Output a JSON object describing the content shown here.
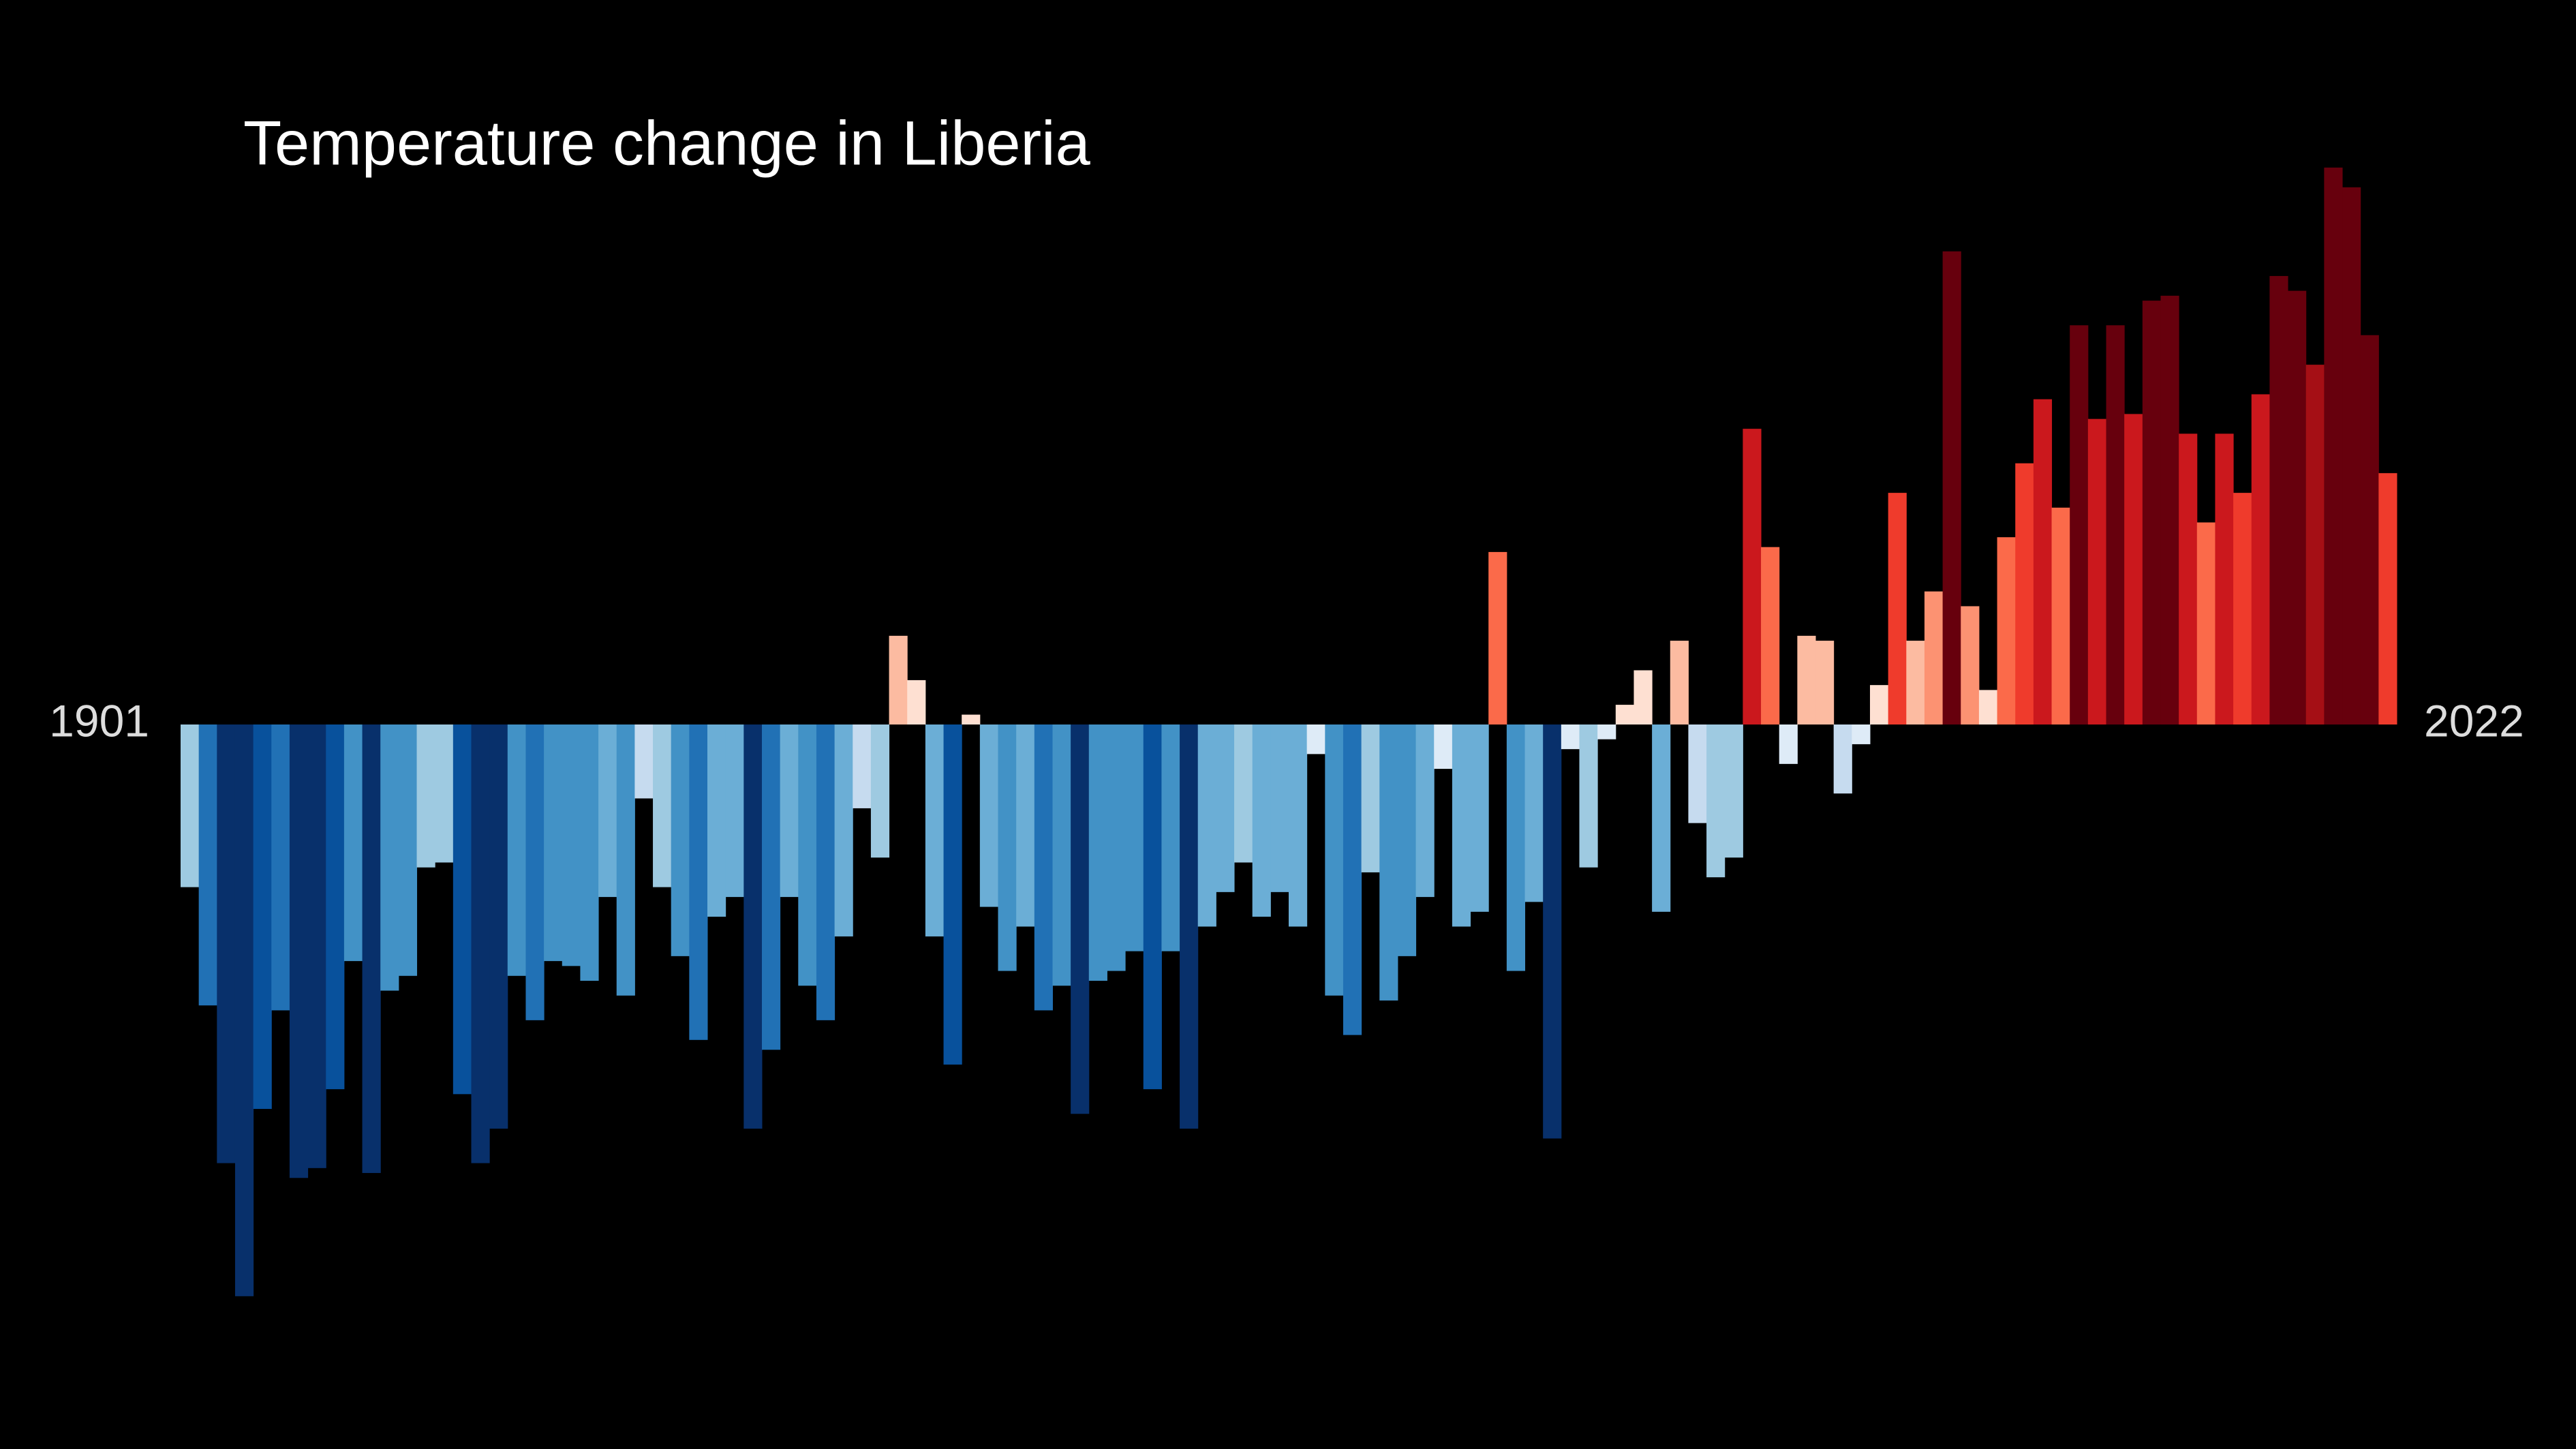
{
  "chart_data": {
    "type": "bar",
    "title": "Temperature change in Liberia",
    "categories": [
      1901,
      null,
      null,
      null,
      null,
      null,
      null,
      null,
      null,
      null,
      null,
      null,
      null,
      null,
      null,
      null,
      null,
      null,
      null,
      null,
      null,
      null,
      null,
      null,
      null,
      null,
      null,
      null,
      null,
      null,
      null,
      null,
      null,
      null,
      null,
      null,
      null,
      null,
      null,
      null,
      null,
      null,
      null,
      null,
      null,
      null,
      null,
      null,
      null,
      null,
      null,
      null,
      null,
      null,
      null,
      null,
      null,
      null,
      null,
      null,
      null,
      null,
      null,
      null,
      null,
      null,
      null,
      null,
      null,
      null,
      null,
      null,
      null,
      null,
      null,
      null,
      null,
      null,
      null,
      null,
      null,
      null,
      null,
      null,
      null,
      null,
      null,
      null,
      null,
      null,
      null,
      null,
      null,
      null,
      null,
      null,
      null,
      null,
      null,
      null,
      null,
      null,
      null,
      null,
      null,
      null,
      null,
      null,
      null,
      null,
      null,
      null,
      null,
      null,
      null,
      null,
      null,
      null,
      null,
      null,
      null,
      2022
    ],
    "values": [
      -0.33,
      -0.57,
      -0.89,
      -1.16,
      -0.78,
      -0.58,
      -0.92,
      -0.9,
      -0.74,
      -0.48,
      -0.91,
      -0.54,
      -0.51,
      -0.29,
      -0.28,
      -0.75,
      -0.89,
      -0.82,
      -0.51,
      -0.6,
      -0.48,
      -0.49,
      -0.52,
      -0.35,
      -0.55,
      -0.15,
      -0.33,
      -0.47,
      -0.64,
      -0.39,
      -0.35,
      -0.82,
      -0.66,
      -0.35,
      -0.53,
      -0.6,
      -0.43,
      -0.17,
      -0.27,
      0.18,
      0.09,
      -0.43,
      -0.69,
      0.02,
      -0.37,
      -0.5,
      -0.41,
      -0.58,
      -0.53,
      -0.79,
      -0.52,
      -0.5,
      -0.46,
      -0.74,
      -0.46,
      -0.82,
      -0.41,
      -0.34,
      -0.28,
      -0.39,
      -0.34,
      -0.41,
      -0.06,
      -0.55,
      -0.63,
      -0.3,
      -0.56,
      -0.47,
      -0.35,
      -0.09,
      -0.41,
      -0.38,
      0.35,
      -0.5,
      -0.36,
      -0.84,
      -0.05,
      -0.29,
      -0.03,
      0.04,
      0.11,
      -0.38,
      0.17,
      -0.2,
      -0.31,
      -0.27,
      0.6,
      0.36,
      -0.08,
      0.18,
      0.17,
      -0.14,
      -0.04,
      0.08,
      0.47,
      0.17,
      0.27,
      0.96,
      0.24,
      0.07,
      0.38,
      0.53,
      0.66,
      0.44,
      0.81,
      0.62,
      0.81,
      0.63,
      0.86,
      0.87,
      0.59,
      0.41,
      0.59,
      0.47,
      0.67,
      0.91,
      0.88,
      0.73,
      1.13,
      1.09,
      0.79,
      0.51
    ],
    "ylim": [
      -1.47,
      1.47
    ],
    "color_scale": {
      "range": [
        -0.9,
        0.9
      ],
      "colors": [
        "#08306b",
        "#08519c",
        "#2171b5",
        "#4292c6",
        "#6baed6",
        "#9ecae1",
        "#c6dbef",
        "#deebf7",
        "#fee0d2",
        "#fcbba1",
        "#fc9272",
        "#fb6a4a",
        "#ef3b2c",
        "#cb181d",
        "#a50f15",
        "#67000d"
      ]
    }
  }
}
